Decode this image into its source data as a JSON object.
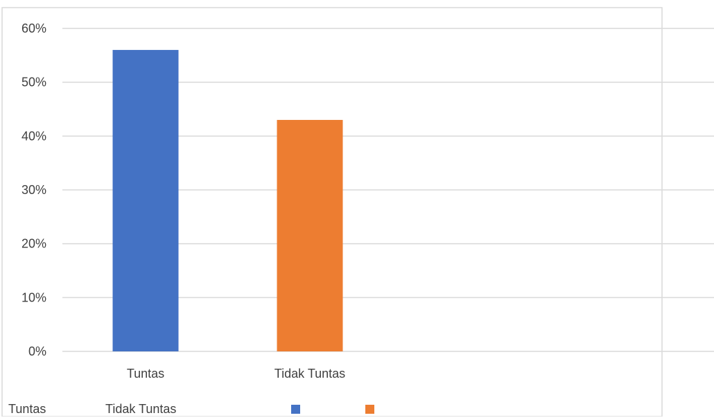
{
  "chart_data": {
    "type": "bar",
    "categories": [
      "Tuntas",
      "Tidak Tuntas"
    ],
    "values": [
      56,
      43
    ],
    "value_unit": "%",
    "colors": [
      "#4472C4",
      "#ED7D31"
    ],
    "ylim": [
      0,
      60
    ],
    "yticks": [
      "0%",
      "10%",
      "20%",
      "30%",
      "40%",
      "50%",
      "60%"
    ],
    "ytick_values": [
      0,
      10,
      20,
      30,
      40,
      50,
      60
    ],
    "grid": true,
    "legend_position": "bottom",
    "legend": {
      "labels": [
        "Tuntas",
        "Tidak Tuntas"
      ],
      "swatch_colors": [
        "#4472C4",
        "#ED7D31"
      ]
    }
  }
}
